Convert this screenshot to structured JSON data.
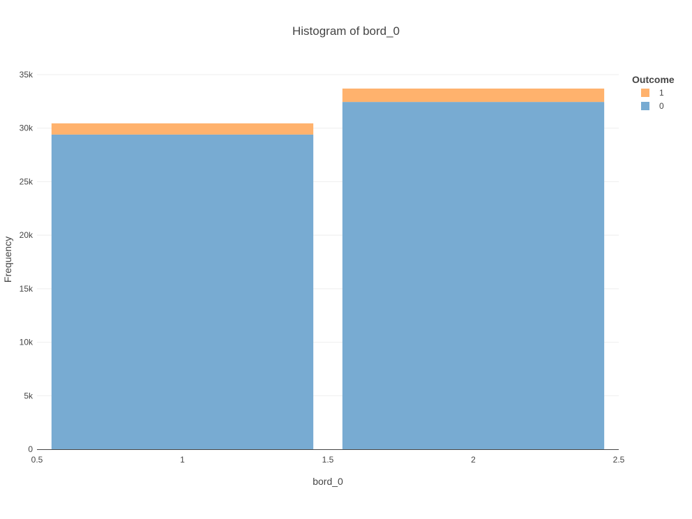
{
  "chart_data": {
    "type": "bar",
    "barmode": "stack",
    "title": "Histogram of bord_0",
    "xlabel": "bord_0",
    "ylabel": "Frequency",
    "xlim": [
      0.5,
      2.5
    ],
    "ylim": [
      0,
      35000
    ],
    "x_ticks": [
      0.5,
      1,
      1.5,
      2,
      2.5
    ],
    "x_tick_labels": [
      "0.5",
      "1",
      "1.5",
      "2",
      "2.5"
    ],
    "y_ticks": [
      0,
      5000,
      10000,
      15000,
      20000,
      25000,
      30000,
      35000
    ],
    "y_tick_labels": [
      "0",
      "5k",
      "10k",
      "15k",
      "20k",
      "25k",
      "30k",
      "35k"
    ],
    "grid": true,
    "legend_position": "top-right",
    "legend_title": "Outcome",
    "bins": [
      {
        "x0": 0.55,
        "x1": 1.45,
        "center": 1
      },
      {
        "x0": 1.55,
        "x1": 2.45,
        "center": 2
      }
    ],
    "series": [
      {
        "name": "0",
        "color": "#78abd2",
        "values": [
          29400,
          32450
        ]
      },
      {
        "name": "1",
        "color": "#ffb26d",
        "values": [
          1050,
          1250
        ]
      }
    ],
    "legend_order": [
      "1",
      "0"
    ]
  }
}
